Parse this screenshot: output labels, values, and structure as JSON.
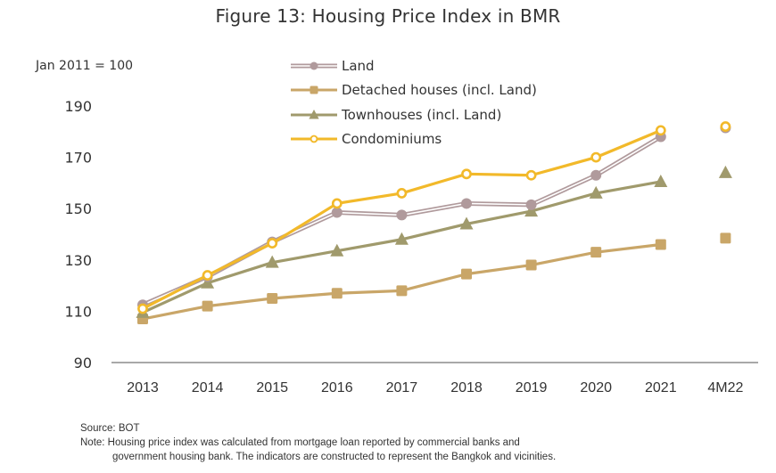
{
  "chart_data": {
    "type": "line",
    "title": "Figure 13: Housing Price Index in BMR",
    "ylabel": "Jan 2011 = 100",
    "xlabel": "",
    "ylim": [
      90,
      190
    ],
    "yticks": [
      90,
      110,
      130,
      150,
      170,
      190
    ],
    "grid": false,
    "legend_position": "top-center",
    "categories": [
      "2013",
      "2014",
      "2015",
      "2016",
      "2017",
      "2018",
      "2019",
      "2020",
      "2021",
      "4M22"
    ],
    "series": [
      {
        "name": "Land",
        "color": "#b09a9c",
        "marker": "circle",
        "line_style": "double",
        "values": [
          112.5,
          123.5,
          137,
          148.5,
          147.5,
          152,
          151.5,
          163,
          178,
          181.5
        ]
      },
      {
        "name": "Detached houses (incl. Land)",
        "color": "#c9a668",
        "marker": "square",
        "line_style": "solid",
        "values": [
          107,
          112,
          115,
          117,
          118,
          124.5,
          128,
          133,
          136,
          138.5
        ]
      },
      {
        "name": "Townhouses (incl. Land)",
        "color": "#a09a6c",
        "marker": "triangle",
        "line_style": "solid",
        "values": [
          109.5,
          121,
          129,
          133.5,
          138,
          144,
          149,
          156,
          160.5,
          164
        ]
      },
      {
        "name": "Condominiums",
        "color": "#f2b92a",
        "marker": "hollow-circle",
        "line_style": "solid",
        "values": [
          111,
          124,
          136.5,
          152,
          156,
          163.5,
          163,
          170,
          180.5,
          182
        ]
      }
    ],
    "connected_through": "2021",
    "annotations": []
  },
  "footer": {
    "source": "Source: BOT",
    "note_line1": "Note: Housing price index was calculated from mortgage loan reported by commercial banks and",
    "note_line2": "government housing bank. The indicators are constructed to represent the Bangkok and vicinities."
  }
}
